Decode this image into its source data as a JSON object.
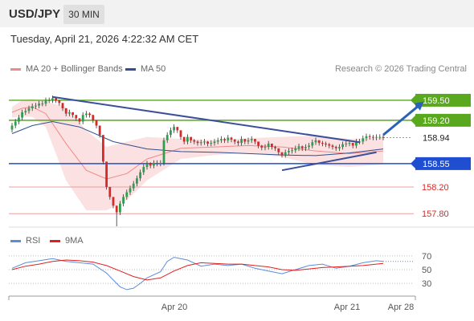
{
  "header": {
    "pair": "USD/JPY",
    "timeframe": "30 MIN"
  },
  "timestamp": "Tuesday, April 21, 2026 4:22:32 AM CET",
  "legend": {
    "ma20": "MA 20 + Bollinger Bands",
    "ma20_color": "#f08a8a",
    "ma50": "MA 50",
    "ma50_color": "#2f4f8f",
    "credit": "Research © 2026 Trading Central"
  },
  "rsi_legend": {
    "rsi": "RSI",
    "rsi_color": "#5b8dd9",
    "ma9": "9MA",
    "ma9_color": "#e02020"
  },
  "colors": {
    "up": "#2e9e4f",
    "down": "#d42a2a",
    "resistance": "#5aa81e",
    "support": "#e8a0a0",
    "pivot": "#1f4fd0",
    "arrow": "#2a62b8",
    "trendline": "#3b4f9a",
    "current": "#222222"
  },
  "chart_data": [
    {
      "type": "candlestick",
      "title": "",
      "ylim": [
        157.61,
        159.8
      ],
      "x_ticks": [
        "Apr 20",
        "Apr 21",
        "Apr 28"
      ],
      "levels": [
        {
          "value": 159.5,
          "label": "159.50",
          "kind": "resistance"
        },
        {
          "value": 159.2,
          "label": "159.20",
          "kind": "resistance"
        },
        {
          "value": 158.94,
          "label": "158.94",
          "kind": "current"
        },
        {
          "value": 158.55,
          "label": "158.55",
          "kind": "pivot"
        },
        {
          "value": 158.2,
          "label": "158.20",
          "kind": "support"
        },
        {
          "value": 157.8,
          "label": "157.80",
          "kind": "support"
        }
      ],
      "series": [
        {
          "name": "MA 20 + Bollinger Bands",
          "kind": "ma20_bands",
          "t": [
            0,
            3,
            6,
            10,
            16,
            22,
            28,
            34,
            40,
            50,
            60,
            70,
            80,
            90,
            100,
            110
          ],
          "mid": [
            159.32,
            159.38,
            159.4,
            159.3,
            158.85,
            158.45,
            158.32,
            158.4,
            158.62,
            158.78,
            158.8,
            158.82,
            158.8,
            158.74,
            158.7,
            158.74
          ],
          "upper": [
            159.4,
            159.5,
            159.52,
            159.48,
            159.4,
            159.05,
            158.8,
            158.88,
            158.95,
            158.92,
            158.9,
            158.93,
            158.95,
            158.97,
            158.92,
            158.94
          ],
          "lower": [
            159.24,
            159.26,
            159.25,
            159.1,
            158.3,
            157.85,
            157.85,
            158.0,
            158.3,
            158.62,
            158.68,
            158.71,
            158.65,
            158.53,
            158.5,
            158.54
          ]
        },
        {
          "name": "MA 50",
          "kind": "ma50",
          "t": [
            0,
            6,
            12,
            20,
            30,
            40,
            50,
            60,
            70,
            80,
            90,
            100,
            110
          ],
          "values": [
            159.0,
            159.12,
            159.18,
            159.1,
            158.88,
            158.77,
            158.73,
            158.72,
            158.7,
            158.68,
            158.67,
            158.71,
            158.77
          ]
        }
      ],
      "trendlines": [
        {
          "from": [
            12,
            159.55
          ],
          "to": [
            103,
            158.87
          ]
        },
        {
          "from": [
            80,
            158.45
          ],
          "to": [
            108,
            158.72
          ]
        }
      ],
      "arrow": {
        "from": [
          110,
          158.98
        ],
        "to": [
          122,
          159.48
        ]
      },
      "candles": {
        "t": [
          0,
          1,
          2,
          3,
          4,
          5,
          6,
          7,
          8,
          9,
          10,
          11,
          12,
          13,
          14,
          15,
          16,
          17,
          18,
          19,
          20,
          21,
          22,
          23,
          24,
          25,
          26,
          27,
          28,
          29,
          30,
          31,
          32,
          33,
          34,
          35,
          36,
          37,
          38,
          39,
          40,
          41,
          42,
          43,
          44,
          45,
          46,
          47,
          48,
          49,
          50,
          51,
          52,
          53,
          54,
          55,
          56,
          57,
          58,
          59,
          60,
          61,
          62,
          63,
          64,
          65,
          66,
          67,
          68,
          69,
          70,
          71,
          72,
          73,
          74,
          75,
          76,
          77,
          78,
          79,
          80,
          81,
          82,
          83,
          84,
          85,
          86,
          87,
          88,
          89,
          90,
          91,
          92,
          93,
          94,
          95,
          96,
          97,
          98,
          99,
          100,
          101,
          102,
          103,
          104,
          105,
          106,
          107,
          108,
          109,
          110
        ],
        "open": [
          159.06,
          159.12,
          159.18,
          159.24,
          159.32,
          159.34,
          159.38,
          159.41,
          159.42,
          159.45,
          159.45,
          159.5,
          159.5,
          159.53,
          159.5,
          159.46,
          159.38,
          159.3,
          159.32,
          159.28,
          159.23,
          159.18,
          159.28,
          159.3,
          159.28,
          159.2,
          159.12,
          158.98,
          158.58,
          158.2,
          158.05,
          157.92,
          157.82,
          157.95,
          158.05,
          158.12,
          158.18,
          158.25,
          158.33,
          158.42,
          158.5,
          158.55,
          158.52,
          158.56,
          158.55,
          158.56,
          158.9,
          158.98,
          159.05,
          159.1,
          159.05,
          158.95,
          158.88,
          158.95,
          158.9,
          158.88,
          158.86,
          158.87,
          158.88,
          158.85,
          158.86,
          158.88,
          158.9,
          158.92,
          158.9,
          158.94,
          158.91,
          158.88,
          158.86,
          158.92,
          158.88,
          158.9,
          158.92,
          158.88,
          158.82,
          158.79,
          158.8,
          158.85,
          158.8,
          158.78,
          158.72,
          158.68,
          158.72,
          158.74,
          158.75,
          158.78,
          158.81,
          158.78,
          158.8,
          158.82,
          158.87,
          158.9,
          158.86,
          158.85,
          158.84,
          158.82,
          158.8,
          158.78,
          158.8,
          158.84,
          158.85,
          158.86,
          158.82,
          158.88,
          158.88,
          158.93,
          158.96,
          158.95,
          158.94,
          158.95,
          158.95
        ],
        "close": [
          159.12,
          159.18,
          159.24,
          159.32,
          159.34,
          159.38,
          159.41,
          159.42,
          159.45,
          159.45,
          159.5,
          159.5,
          159.53,
          159.5,
          159.46,
          159.38,
          159.3,
          159.32,
          159.28,
          159.23,
          159.18,
          159.28,
          159.3,
          159.28,
          159.2,
          159.12,
          158.98,
          158.58,
          158.2,
          158.05,
          157.92,
          157.82,
          157.95,
          158.05,
          158.12,
          158.18,
          158.25,
          158.33,
          158.42,
          158.5,
          158.55,
          158.52,
          158.56,
          158.55,
          158.56,
          158.9,
          158.98,
          159.05,
          159.1,
          159.05,
          158.95,
          158.88,
          158.95,
          158.9,
          158.88,
          158.86,
          158.87,
          158.88,
          158.85,
          158.86,
          158.88,
          158.9,
          158.92,
          158.9,
          158.94,
          158.91,
          158.88,
          158.86,
          158.92,
          158.88,
          158.9,
          158.92,
          158.88,
          158.82,
          158.79,
          158.8,
          158.85,
          158.8,
          158.78,
          158.72,
          158.68,
          158.72,
          158.74,
          158.75,
          158.78,
          158.81,
          158.78,
          158.8,
          158.82,
          158.87,
          158.9,
          158.86,
          158.85,
          158.84,
          158.82,
          158.8,
          158.78,
          158.8,
          158.84,
          158.85,
          158.86,
          158.82,
          158.88,
          158.88,
          158.93,
          158.96,
          158.95,
          158.94,
          158.95,
          158.95,
          158.94
        ],
        "high": [
          159.16,
          159.22,
          159.28,
          159.36,
          159.38,
          159.42,
          159.45,
          159.46,
          159.49,
          159.49,
          159.54,
          159.54,
          159.57,
          159.54,
          159.5,
          159.42,
          159.34,
          159.36,
          159.32,
          159.27,
          159.22,
          159.32,
          159.34,
          159.32,
          159.24,
          159.16,
          159.02,
          158.62,
          158.24,
          158.1,
          157.96,
          157.87,
          157.99,
          158.09,
          158.16,
          158.22,
          158.29,
          158.37,
          158.46,
          158.54,
          158.59,
          158.57,
          158.6,
          158.6,
          158.6,
          158.94,
          159.02,
          159.09,
          159.14,
          159.09,
          158.99,
          158.92,
          158.99,
          158.94,
          158.92,
          158.9,
          158.91,
          158.92,
          158.89,
          158.9,
          158.92,
          158.94,
          158.96,
          158.94,
          158.98,
          158.95,
          158.92,
          158.9,
          158.96,
          158.92,
          158.94,
          158.96,
          158.92,
          158.86,
          158.83,
          158.84,
          158.89,
          158.84,
          158.82,
          158.76,
          158.72,
          158.76,
          158.78,
          158.79,
          158.82,
          158.85,
          158.82,
          158.84,
          158.86,
          158.91,
          158.94,
          158.9,
          158.89,
          158.88,
          158.86,
          158.84,
          158.82,
          158.84,
          158.88,
          158.89,
          158.9,
          158.86,
          158.92,
          158.92,
          158.97,
          159.0,
          158.99,
          158.98,
          158.99,
          158.99,
          158.98
        ],
        "low": [
          159.02,
          159.08,
          159.14,
          159.2,
          159.28,
          159.3,
          159.34,
          159.37,
          159.38,
          159.41,
          159.41,
          159.46,
          159.46,
          159.46,
          159.42,
          159.34,
          159.26,
          159.26,
          159.24,
          159.19,
          159.14,
          159.14,
          159.24,
          159.24,
          159.16,
          159.08,
          158.94,
          158.54,
          158.16,
          158.01,
          157.88,
          157.61,
          157.78,
          157.91,
          158.01,
          158.08,
          158.14,
          158.21,
          158.29,
          158.38,
          158.46,
          158.48,
          158.48,
          158.51,
          158.51,
          158.52,
          158.86,
          158.94,
          159.01,
          159.01,
          158.91,
          158.84,
          158.84,
          158.86,
          158.84,
          158.82,
          158.82,
          158.83,
          158.81,
          158.81,
          158.82,
          158.84,
          158.86,
          158.86,
          158.86,
          158.87,
          158.84,
          158.82,
          158.82,
          158.84,
          158.84,
          158.86,
          158.84,
          158.78,
          158.75,
          158.75,
          158.76,
          158.76,
          158.74,
          158.68,
          158.64,
          158.64,
          158.68,
          158.7,
          158.71,
          158.74,
          158.74,
          158.74,
          158.76,
          158.78,
          158.83,
          158.82,
          158.81,
          158.8,
          158.78,
          158.76,
          158.74,
          158.74,
          158.76,
          158.8,
          158.81,
          158.78,
          158.78,
          158.84,
          158.84,
          158.89,
          158.91,
          158.9,
          158.9,
          158.91,
          158.9
        ]
      }
    },
    {
      "type": "line",
      "title": "",
      "ylim": [
        15,
        85
      ],
      "y_ticks": [
        30,
        50,
        70
      ],
      "x_ticks": [
        "Apr 20",
        "Apr 21",
        "Apr 28"
      ],
      "series": [
        {
          "name": "RSI",
          "t": [
            0,
            4,
            8,
            12,
            16,
            20,
            24,
            28,
            30,
            32,
            34,
            36,
            38,
            40,
            44,
            46,
            48,
            52,
            56,
            60,
            64,
            68,
            72,
            76,
            80,
            84,
            88,
            92,
            96,
            100,
            104,
            108,
            110
          ],
          "values": [
            52,
            60,
            63,
            66,
            62,
            60,
            58,
            45,
            35,
            25,
            21,
            23,
            30,
            38,
            47,
            62,
            68,
            64,
            55,
            58,
            56,
            58,
            52,
            48,
            44,
            50,
            56,
            58,
            52,
            55,
            60,
            63,
            62
          ]
        },
        {
          "name": "9MA",
          "t": [
            0,
            4,
            8,
            12,
            16,
            20,
            24,
            28,
            32,
            36,
            40,
            44,
            48,
            52,
            56,
            60,
            64,
            68,
            72,
            76,
            80,
            84,
            88,
            92,
            96,
            100,
            104,
            108,
            110
          ],
          "values": [
            50,
            55,
            58,
            62,
            64,
            63,
            61,
            56,
            48,
            40,
            35,
            38,
            48,
            56,
            60,
            59,
            58,
            58,
            56,
            54,
            50,
            49,
            51,
            53,
            54,
            55,
            56,
            58,
            59
          ]
        }
      ]
    }
  ]
}
